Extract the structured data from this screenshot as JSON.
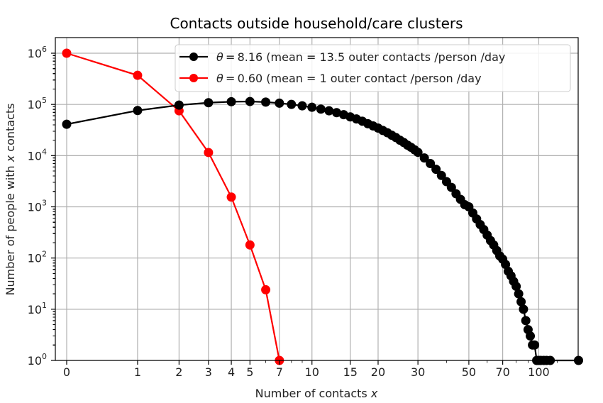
{
  "chart_data": {
    "type": "line",
    "title": "Contacts outside household/care clusters",
    "xlabel": "Number of contacts x",
    "ylabel": "Number of people with x contacts",
    "xscale": "log(1+x)",
    "yscale": "log",
    "xlim": [
      -0.15,
      150
    ],
    "ylim": [
      1,
      1600000
    ],
    "grid": true,
    "legend_position": "upper right",
    "x_ticks": [
      0,
      1,
      2,
      3,
      4,
      5,
      7,
      10,
      15,
      20,
      30,
      50,
      70,
      100
    ],
    "x_tick_labels": [
      "0",
      "1",
      "2",
      "3",
      "4",
      "5",
      "7",
      "10",
      "15",
      "20",
      "30",
      "50",
      "70",
      "100"
    ],
    "y_ticks": [
      1,
      10,
      100,
      1000,
      10000,
      100000,
      1000000
    ],
    "y_tick_labels": [
      {
        "base": "10",
        "exp": "0"
      },
      {
        "base": "10",
        "exp": "1"
      },
      {
        "base": "10",
        "exp": "2"
      },
      {
        "base": "10",
        "exp": "3"
      },
      {
        "base": "10",
        "exp": "4"
      },
      {
        "base": "10",
        "exp": "5"
      },
      {
        "base": "10",
        "exp": "6"
      }
    ],
    "series": [
      {
        "name": "θ = 8.16 (mean = 13.5 outer contacts /person /day",
        "legend_prefix": "θ = 8.16",
        "legend_rest": "(mean = 13.5 outer contacts /person /day",
        "color": "#000000",
        "x": [
          0,
          1,
          2,
          3,
          4,
          5,
          6,
          7,
          8,
          9,
          10,
          11,
          12,
          13,
          14,
          15,
          16,
          17,
          18,
          19,
          20,
          21,
          22,
          23,
          24,
          25,
          26,
          27,
          28,
          29,
          30,
          32,
          34,
          36,
          38,
          40,
          42,
          44,
          46,
          48,
          50,
          52,
          54,
          56,
          58,
          60,
          62,
          64,
          66,
          68,
          70,
          72,
          74,
          76,
          78,
          80,
          82,
          84,
          86,
          88,
          90,
          92,
          94,
          96,
          98,
          100,
          102,
          105,
          108,
          112,
          148
        ],
        "y": [
          41000,
          76000,
          97000,
          108000,
          113000,
          114000,
          111000,
          106000,
          100000,
          94000,
          88000,
          81000,
          75000,
          69000,
          63000,
          57000,
          52000,
          47000,
          42000,
          38000,
          34500,
          31000,
          28000,
          25000,
          22500,
          20000,
          18000,
          16000,
          14500,
          13000,
          11600,
          9000,
          7000,
          5400,
          4100,
          3100,
          2400,
          1800,
          1400,
          1100,
          1000,
          760,
          580,
          450,
          360,
          280,
          220,
          180,
          140,
          110,
          95,
          75,
          55,
          45,
          35,
          28,
          20,
          14,
          10,
          6,
          4,
          3,
          2,
          2,
          1,
          1,
          1,
          1,
          1,
          1,
          1
        ]
      },
      {
        "name": "θ = 0.60 (mean = 1 outer contact /person /day",
        "legend_prefix": "θ = 0.60",
        "legend_rest": "(mean = 1 outer contact /person /day",
        "color": "#ff0000",
        "x": [
          0,
          1,
          2,
          3,
          4,
          5,
          6,
          7
        ],
        "y": [
          1000000,
          370000,
          75000,
          11500,
          1550,
          180,
          24,
          1
        ]
      }
    ]
  }
}
